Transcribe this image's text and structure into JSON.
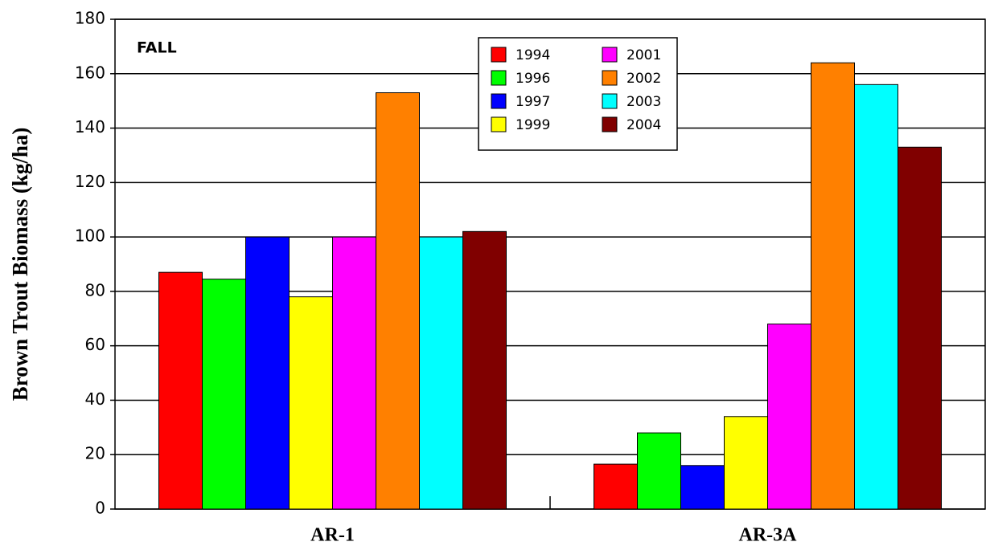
{
  "chart_data": {
    "type": "bar",
    "y_label": "Brown Trout Biomass (kg/ha)",
    "annotation": "FALL",
    "categories": [
      "AR-1",
      "AR-3A"
    ],
    "series": [
      {
        "name": "1994",
        "color": "#ff0000",
        "values": [
          87,
          16.5
        ]
      },
      {
        "name": "1996",
        "color": "#00ff00",
        "values": [
          84.5,
          28
        ]
      },
      {
        "name": "1997",
        "color": "#0000ff",
        "values": [
          100,
          16
        ]
      },
      {
        "name": "1999",
        "color": "#ffff00",
        "values": [
          78,
          34
        ]
      },
      {
        "name": "2001",
        "color": "#ff00ff",
        "values": [
          100,
          68
        ]
      },
      {
        "name": "2002",
        "color": "#ff8000",
        "values": [
          153,
          164
        ]
      },
      {
        "name": "2003",
        "color": "#00ffff",
        "values": [
          100,
          156
        ]
      },
      {
        "name": "2004",
        "color": "#800000",
        "values": [
          102,
          133
        ]
      }
    ],
    "ylim": [
      0,
      180
    ],
    "yticks": [
      0,
      20,
      40,
      60,
      80,
      100,
      120,
      140,
      160,
      180
    ],
    "grid": true
  }
}
